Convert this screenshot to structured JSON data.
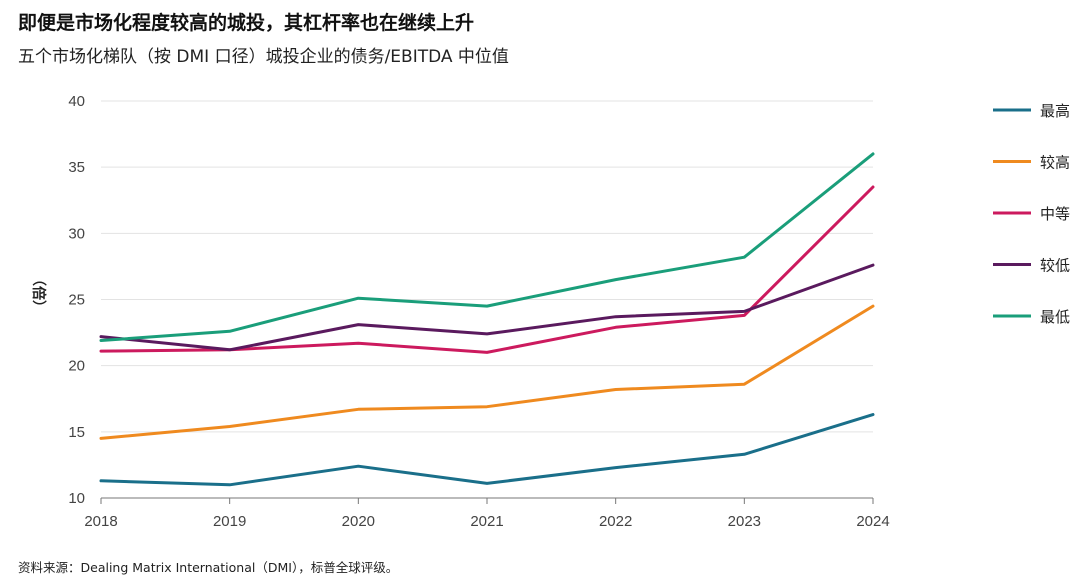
{
  "title": "即便是市场化程度较高的城投，其杠杆率也在继续上升",
  "subtitle": "五个市场化梯队（按 DMI 口径）城投企业的债务/EBITDA 中位值",
  "source": "资料来源：Dealing Matrix International（DMI），标普全球评级。",
  "chart_data": {
    "type": "line",
    "title": "即便是市场化程度较高的城投，其杠杆率也在继续上升",
    "subtitle": "五个市场化梯队（按 DMI 口径）城投企业的债务/EBITDA 中位值",
    "xlabel": "",
    "ylabel": "（倍）",
    "x": [
      "2018",
      "2019",
      "2020",
      "2021",
      "2022",
      "2023",
      "2024"
    ],
    "ylim": [
      10,
      40
    ],
    "yticks": [
      "10",
      "15",
      "20",
      "25",
      "30",
      "35",
      "40"
    ],
    "grid": true,
    "legend_position": "right",
    "series": [
      {
        "name": "最高",
        "color": "#1a6f8a",
        "values": [
          11.3,
          11.0,
          12.4,
          11.1,
          12.3,
          13.3,
          16.3
        ]
      },
      {
        "name": "较高",
        "color": "#ef8a1f",
        "values": [
          14.5,
          15.4,
          16.7,
          16.9,
          18.2,
          18.6,
          24.5
        ]
      },
      {
        "name": "中等",
        "color": "#cc1a5e",
        "values": [
          21.1,
          21.2,
          21.7,
          21.0,
          22.9,
          23.8,
          33.5
        ]
      },
      {
        "name": "较低",
        "color": "#5a1a5e",
        "values": [
          22.2,
          21.2,
          23.1,
          22.4,
          23.7,
          24.1,
          27.6
        ]
      },
      {
        "name": "最低",
        "color": "#1a9e7a",
        "values": [
          21.9,
          22.6,
          25.1,
          24.5,
          26.5,
          28.2,
          36.0
        ]
      }
    ]
  }
}
